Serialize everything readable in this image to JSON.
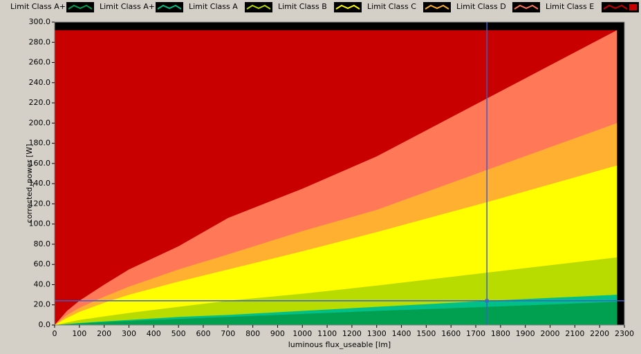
{
  "chart_data": {
    "type": "area",
    "xlabel": "luminous flux_useable [lm]",
    "ylabel": "corrected_power [W]",
    "x": [
      0,
      50,
      100,
      200,
      300,
      500,
      700,
      1000,
      1300,
      1750,
      2270
    ],
    "series": [
      {
        "name": "Limit Class A++",
        "color": "#00a050",
        "values": [
          0,
          0.8,
          1.5,
          2.8,
          4,
          6,
          8,
          11,
          14,
          18,
          23
        ]
      },
      {
        "name": "Limit Class A+",
        "color": "#00c088",
        "values": [
          0,
          1,
          2,
          3.6,
          5,
          8,
          10,
          14,
          18,
          24,
          30
        ]
      },
      {
        "name": "Limit Class A",
        "color": "#b8dc00",
        "values": [
          0,
          2.5,
          5,
          8.5,
          12,
          18,
          24,
          31,
          39,
          52,
          67
        ]
      },
      {
        "name": "Limit Class B",
        "color": "#ffff00",
        "values": [
          0,
          7,
          13,
          22,
          30,
          43,
          55,
          73,
          92,
          122,
          158
        ]
      },
      {
        "name": "Limit Class C",
        "color": "#ffb030",
        "values": [
          0,
          10,
          17,
          28,
          38,
          55,
          70,
          93,
          114,
          154,
          200
        ]
      },
      {
        "name": "Limit Class D",
        "color": "#ff7858",
        "values": [
          0,
          14,
          24,
          40,
          55,
          78,
          106,
          135,
          167,
          225,
          292
        ]
      },
      {
        "name": "Limit Class E",
        "color": "#c80000",
        "values": [
          292,
          292,
          292,
          292,
          292,
          292,
          292,
          292,
          292,
          292,
          292
        ]
      }
    ],
    "cursor": {
      "x": 1745,
      "y": 24
    },
    "xlim": [
      0,
      2300
    ],
    "xticks": [
      0,
      100,
      200,
      300,
      400,
      500,
      600,
      700,
      800,
      900,
      1000,
      1100,
      1200,
      1300,
      1400,
      1500,
      1600,
      1700,
      1800,
      1900,
      2000,
      2100,
      2200,
      2300
    ],
    "ylim": [
      0,
      300
    ],
    "yticks": [
      {
        "value": 0,
        "label": "0.0"
      },
      {
        "value": 20,
        "label": "20.0"
      },
      {
        "value": 40,
        "label": "40.0"
      },
      {
        "value": 60,
        "label": "60.0"
      },
      {
        "value": 80,
        "label": "80.0"
      },
      {
        "value": 100,
        "label": "100.0"
      },
      {
        "value": 120,
        "label": "120.0"
      },
      {
        "value": 140,
        "label": "140.0"
      },
      {
        "value": 160,
        "label": "160.0"
      },
      {
        "value": 180,
        "label": "180.0"
      },
      {
        "value": 200,
        "label": "200.0"
      },
      {
        "value": 220,
        "label": "220.0"
      },
      {
        "value": 240,
        "label": "240.0"
      },
      {
        "value": 260,
        "label": "260.0"
      },
      {
        "value": 280,
        "label": "280.0"
      },
      {
        "value": 300,
        "label": "300.0"
      }
    ],
    "grid": false
  }
}
